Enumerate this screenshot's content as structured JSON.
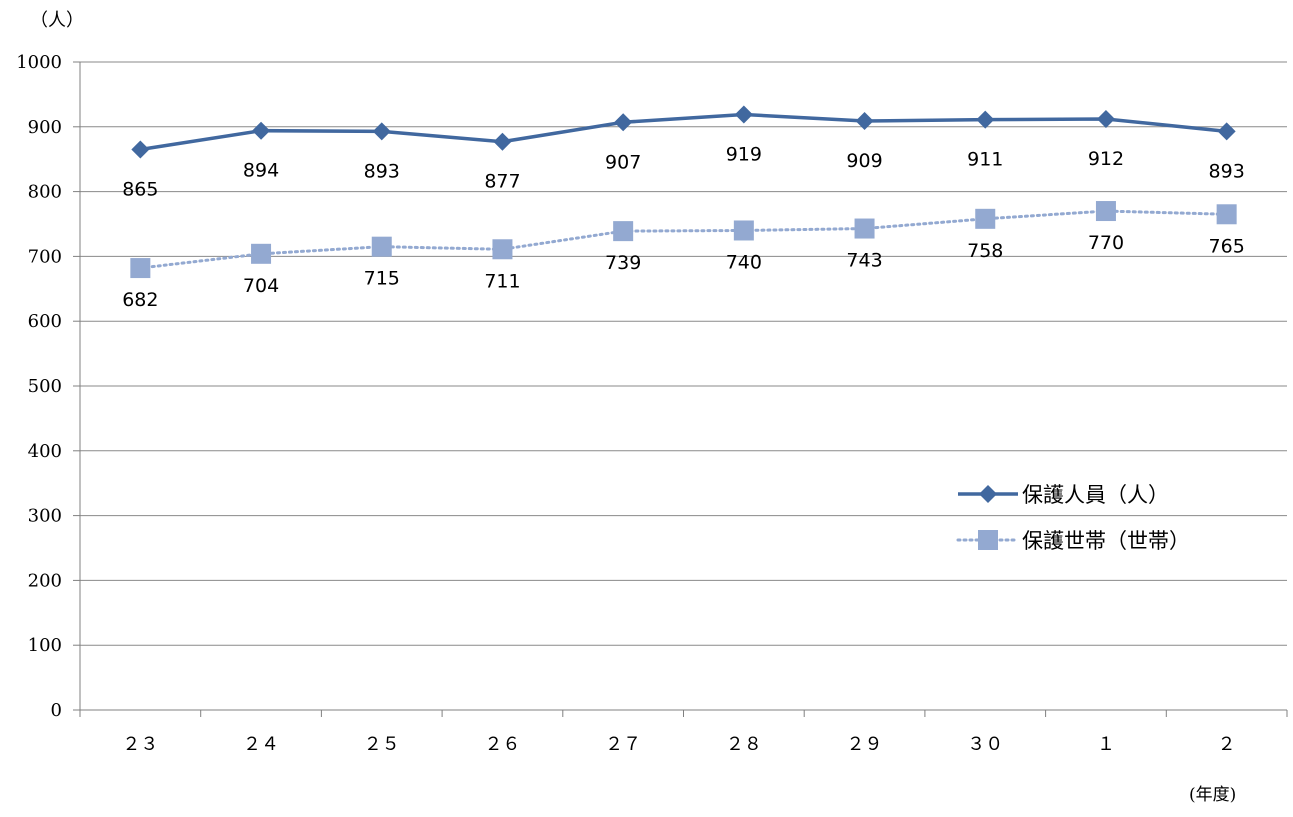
{
  "chart_data": {
    "type": "line",
    "ylabel": "（人）",
    "xlabel": "(年度)",
    "ylim": [
      0,
      1000
    ],
    "yticks": [
      0,
      100,
      200,
      300,
      400,
      500,
      600,
      700,
      800,
      900,
      1000
    ],
    "categories": [
      "２３",
      "２４",
      "２５",
      "２６",
      "２７",
      "２８",
      "２９",
      "３０",
      "１",
      "２"
    ],
    "grid": true,
    "legend_position": "right",
    "series": [
      {
        "name": "保護人員（人）",
        "values": [
          865,
          894,
          893,
          877,
          907,
          919,
          909,
          911,
          912,
          893
        ],
        "color": "#41689f",
        "marker": "diamond",
        "line_style": "solid"
      },
      {
        "name": "保護世帯（世帯）",
        "values": [
          682,
          704,
          715,
          711,
          739,
          740,
          743,
          758,
          770,
          765
        ],
        "color": "#93a9d1",
        "marker": "square",
        "line_style": "dotted"
      }
    ]
  }
}
